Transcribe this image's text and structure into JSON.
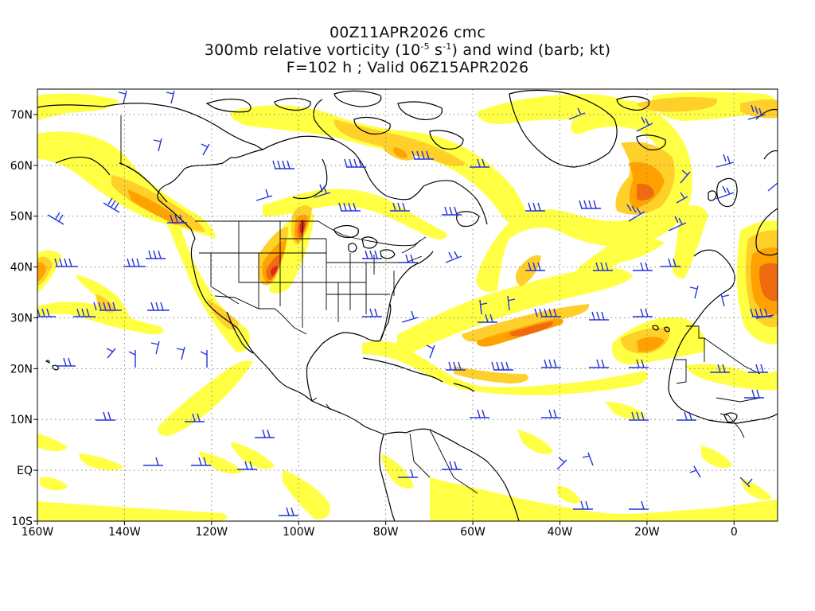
{
  "title": {
    "run": "00Z11APR2026 cmc",
    "field_prefix": "300mb relative vorticity (10",
    "field_exp1": "-5",
    "field_mid": " s",
    "field_exp2": "-1",
    "field_suffix": ") and wind (barb; kt)",
    "valid": "F=102 h ; Valid 06Z15APR2026"
  },
  "map": {
    "projection": "lat-lon",
    "lon_range": [
      -160,
      10
    ],
    "lat_range": [
      -10,
      75
    ],
    "grid": "dotted",
    "lon_ticks": [
      {
        "value": -160,
        "label": "160W"
      },
      {
        "value": -140,
        "label": "140W"
      },
      {
        "value": -120,
        "label": "120W"
      },
      {
        "value": -100,
        "label": "100W"
      },
      {
        "value": -80,
        "label": "80W"
      },
      {
        "value": -60,
        "label": "60W"
      },
      {
        "value": -40,
        "label": "40W"
      },
      {
        "value": -20,
        "label": "20W"
      },
      {
        "value": 0,
        "label": "0"
      }
    ],
    "lat_ticks": [
      {
        "value": 70,
        "label": "70N"
      },
      {
        "value": 60,
        "label": "60N"
      },
      {
        "value": 50,
        "label": "50N"
      },
      {
        "value": 40,
        "label": "40N"
      },
      {
        "value": 30,
        "label": "30N"
      },
      {
        "value": 20,
        "label": "20N"
      },
      {
        "value": 10,
        "label": "10N"
      },
      {
        "value": 0,
        "label": "EQ"
      },
      {
        "value": -10,
        "label": "10S"
      }
    ],
    "colors": {
      "level1": "#ffff44",
      "level2": "#ffcf2a",
      "level3": "#ffa200",
      "level4": "#f06a10",
      "level5": "#e02818",
      "barb": "#2233dd",
      "coast": "#000000"
    }
  }
}
